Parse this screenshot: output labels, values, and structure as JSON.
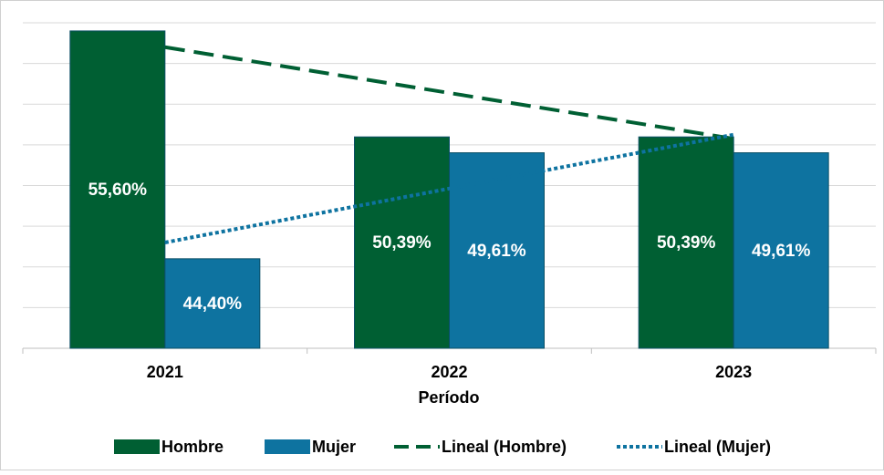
{
  "chart_data": {
    "type": "bar",
    "x_label": "Período",
    "categories": [
      "2021",
      "2022",
      "2023"
    ],
    "ylim": [
      40,
      56
    ],
    "yticks": [
      40,
      42,
      44,
      46,
      48,
      50,
      52,
      54,
      56
    ],
    "grid": true,
    "legend": "bottom",
    "series": [
      {
        "name": "Hombre",
        "color": "#005f33",
        "values": [
          55.6,
          50.39,
          50.39
        ],
        "value_labels": [
          "55,60%",
          "50,39%",
          "50,39%"
        ]
      },
      {
        "name": "Mujer",
        "color": "#0e73a0",
        "values": [
          44.4,
          49.61,
          49.61
        ],
        "value_labels": [
          "44,40%",
          "49,61%",
          "49,61%"
        ]
      },
      {
        "name": "Lineal (Hombre)",
        "type": "line",
        "style": "dashed",
        "color": "#005f33",
        "values": [
          54.8,
          52.55,
          50.3
        ]
      },
      {
        "name": "Lineal (Mujer)",
        "type": "line",
        "style": "dotted",
        "color": "#0e73a0",
        "values": [
          45.2,
          47.85,
          50.5
        ]
      }
    ]
  }
}
